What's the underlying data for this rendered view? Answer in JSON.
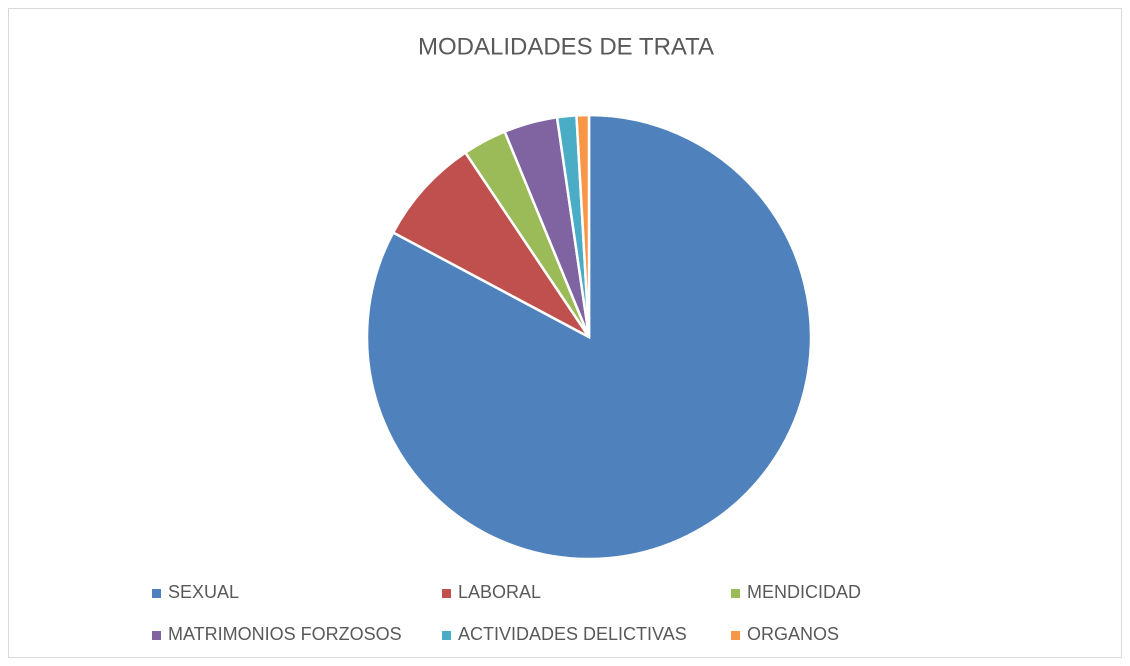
{
  "chart_data": {
    "type": "pie",
    "title": "MODALIDADES DE TRATA",
    "categories": [
      "SEXUAL",
      "LABORAL",
      "MENDICIDAD",
      "MATRIMONIOS FORZOSOS",
      "ACTIVIDADES DELICTIVAS",
      "ORGANOS"
    ],
    "values": [
      82.8,
      7.8,
      3.2,
      3.9,
      1.4,
      0.9
    ],
    "colors": [
      "#4f81bd",
      "#c0504d",
      "#9bbb59",
      "#8064a2",
      "#4bacc6",
      "#f79646"
    ],
    "legend": "bottom"
  }
}
